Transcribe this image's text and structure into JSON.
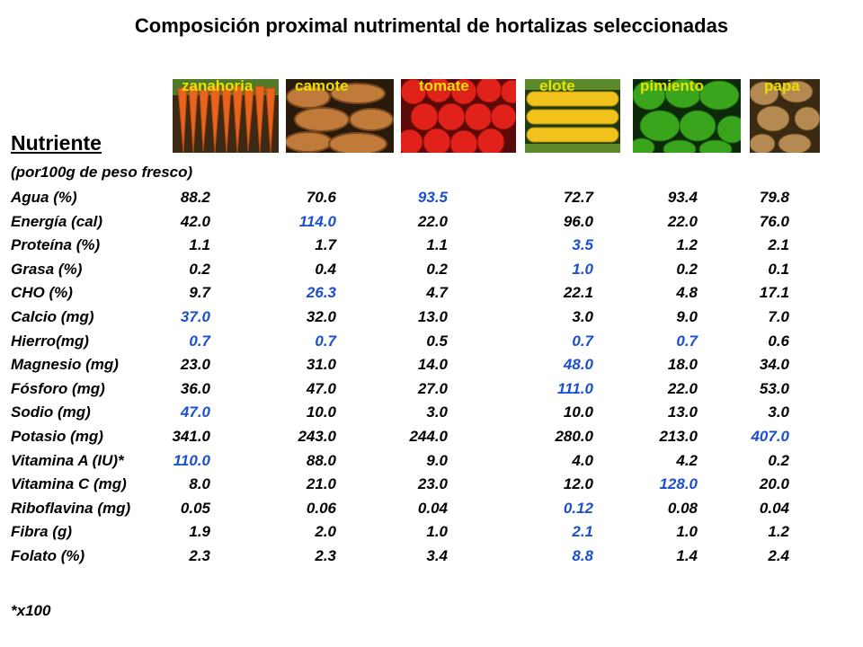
{
  "title": "Composición proximal nutrimental de hortalizas seleccionadas",
  "vegetables": [
    "zanahoria",
    "camote",
    "tomate",
    "elote",
    "pimiento",
    "papa"
  ],
  "colors": {
    "highlight": "#1a4fd0",
    "veg_label": "#e8e000"
  },
  "header": {
    "nutrient": "Nutriente",
    "basis": "(por100g de peso fresco)"
  },
  "rows": [
    {
      "label": "Agua (%)",
      "values": [
        "88.2",
        "70.6",
        "93.5",
        "72.7",
        "93.4",
        "79.8"
      ],
      "highlight": [
        false,
        false,
        true,
        false,
        false,
        false
      ]
    },
    {
      "label": "Energía (cal)",
      "values": [
        "42.0",
        "114.0",
        "22.0",
        "96.0",
        "22.0",
        "76.0"
      ],
      "highlight": [
        false,
        true,
        false,
        false,
        false,
        false
      ]
    },
    {
      "label": "Proteína (%)",
      "values": [
        "1.1",
        "1.7",
        "1.1",
        "3.5",
        "1.2",
        "2.1"
      ],
      "highlight": [
        false,
        false,
        false,
        true,
        false,
        false
      ]
    },
    {
      "label": "Grasa (%)",
      "values": [
        "0.2",
        "0.4",
        "0.2",
        "1.0",
        "0.2",
        "0.1"
      ],
      "highlight": [
        false,
        false,
        false,
        true,
        false,
        false
      ]
    },
    {
      "label": "CHO (%)",
      "values": [
        "9.7",
        "26.3",
        "4.7",
        "22.1",
        "4.8",
        "17.1"
      ],
      "highlight": [
        false,
        true,
        false,
        false,
        false,
        false
      ]
    },
    {
      "label": "Calcio (mg)",
      "values": [
        "37.0",
        "32.0",
        "13.0",
        "3.0",
        "9.0",
        "7.0"
      ],
      "highlight": [
        true,
        false,
        false,
        false,
        false,
        false
      ]
    },
    {
      "label": "Hierro(mg)",
      "values": [
        "0.7",
        "0.7",
        "0.5",
        "0.7",
        "0.7",
        "0.6"
      ],
      "highlight": [
        true,
        true,
        false,
        true,
        true,
        false
      ]
    },
    {
      "label": "Magnesio (mg)",
      "values": [
        "23.0",
        "31.0",
        "14.0",
        "48.0",
        "18.0",
        "34.0"
      ],
      "highlight": [
        false,
        false,
        false,
        true,
        false,
        false
      ]
    },
    {
      "label": "Fósforo (mg)",
      "values": [
        "36.0",
        "47.0",
        "27.0",
        "111.0",
        "22.0",
        "53.0"
      ],
      "highlight": [
        false,
        false,
        false,
        true,
        false,
        false
      ]
    },
    {
      "label": "Sodio (mg)",
      "values": [
        "47.0",
        "10.0",
        "3.0",
        "10.0",
        "13.0",
        "3.0"
      ],
      "highlight": [
        true,
        false,
        false,
        false,
        false,
        false
      ]
    },
    {
      "label": "Potasio (mg)",
      "values": [
        "341.0",
        "243.0",
        "244.0",
        "280.0",
        "213.0",
        "407.0"
      ],
      "highlight": [
        false,
        false,
        false,
        false,
        false,
        true
      ]
    },
    {
      "label": "Vitamina A (IU)*",
      "values": [
        "110.0",
        "88.0",
        "9.0",
        "4.0",
        "4.2",
        "0.2"
      ],
      "highlight": [
        true,
        false,
        false,
        false,
        false,
        false
      ]
    },
    {
      "label": "Vitamina C (mg)",
      "values": [
        "8.0",
        "21.0",
        "23.0",
        "12.0",
        "128.0",
        "20.0"
      ],
      "highlight": [
        false,
        false,
        false,
        false,
        true,
        false
      ]
    },
    {
      "label": "Riboflavina (mg)",
      "values": [
        "0.05",
        "0.06",
        "0.04",
        "0.12",
        "0.08",
        "0.04"
      ],
      "highlight": [
        false,
        false,
        false,
        true,
        false,
        false
      ]
    },
    {
      "label": "Fibra (g)",
      "values": [
        "1.9",
        "2.0",
        "1.0",
        "2.1",
        "1.0",
        "1.2"
      ],
      "highlight": [
        false,
        false,
        false,
        true,
        false,
        false
      ]
    },
    {
      "label": "Folato (%)",
      "values": [
        "2.3",
        "2.3",
        "3.4",
        "8.8",
        "1.4",
        "2.4"
      ],
      "highlight": [
        false,
        false,
        false,
        true,
        false,
        false
      ]
    }
  ],
  "footnote": "*x100"
}
